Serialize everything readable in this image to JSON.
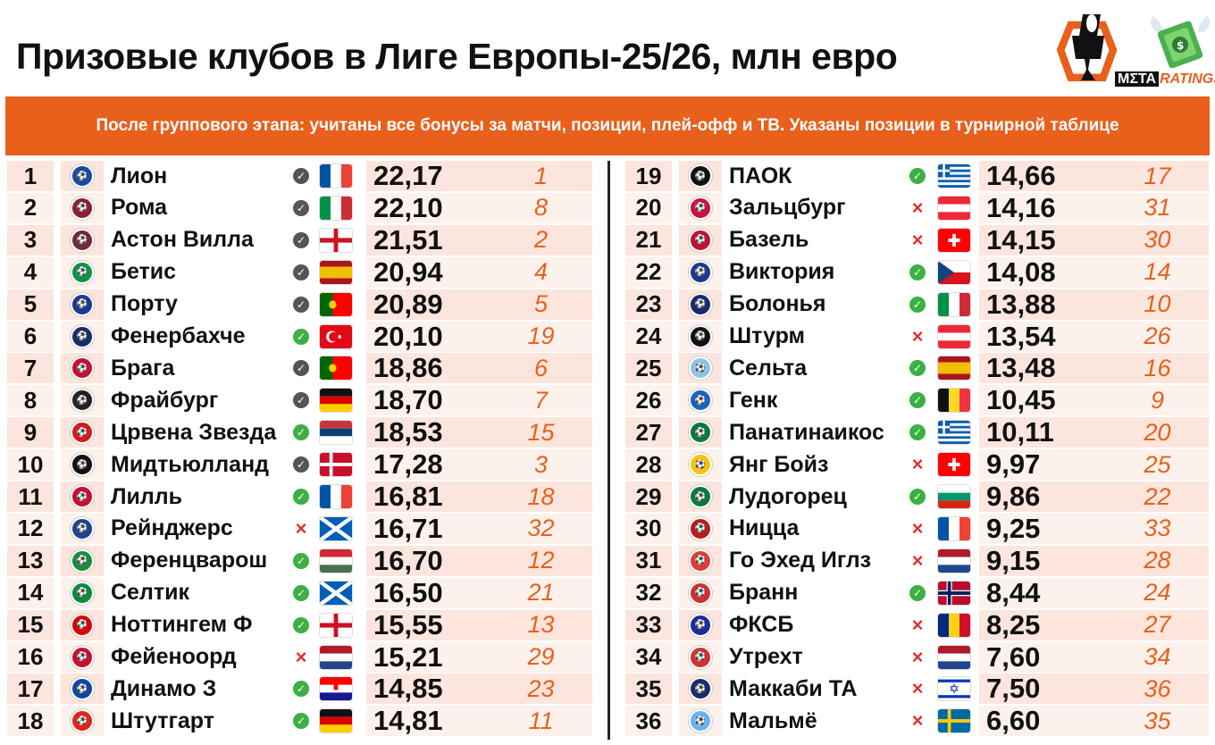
{
  "title": "Призовые клубов в Лиге Европы-25/26, млн евро",
  "subtitle": "После группового этапа: учитаны все бонусы за матчи, позиции, плей-офф и ТВ. Указаны позиции в турнирной таблице",
  "logo": {
    "part1": "MΣTA",
    "part2": "RATINGS"
  },
  "colors": {
    "accent": "#e8601c",
    "check_dark": "#555555",
    "check_green": "#3cb043",
    "cross": "#e03030",
    "row_shade": "#fbe5dc"
  },
  "clubs": [
    {
      "rank": "1",
      "name": "Лион",
      "status": "check-dark",
      "flag": "fr",
      "prize": "22,17",
      "pos": "1",
      "badge": "#1a4ba1"
    },
    {
      "rank": "2",
      "name": "Рома",
      "status": "check-dark",
      "flag": "it",
      "prize": "22,10",
      "pos": "8",
      "badge": "#8e1f2f"
    },
    {
      "rank": "3",
      "name": "Астон Вилла",
      "status": "check-dark",
      "flag": "en",
      "prize": "21,51",
      "pos": "2",
      "badge": "#7a263a"
    },
    {
      "rank": "4",
      "name": "Бетис",
      "status": "check-dark",
      "flag": "es",
      "prize": "20,94",
      "pos": "4",
      "badge": "#0b9443"
    },
    {
      "rank": "5",
      "name": "Порту",
      "status": "check-dark",
      "flag": "pt",
      "prize": "20,89",
      "pos": "5",
      "badge": "#1b3a8f"
    },
    {
      "rank": "6",
      "name": "Фенербахче",
      "status": "check-green",
      "flag": "tr",
      "prize": "20,10",
      "pos": "19",
      "badge": "#1a2b6b"
    },
    {
      "rank": "7",
      "name": "Брага",
      "status": "check-dark",
      "flag": "pt",
      "prize": "18,86",
      "pos": "6",
      "badge": "#c8102e"
    },
    {
      "rank": "8",
      "name": "Фрайбург",
      "status": "check-dark",
      "flag": "de",
      "prize": "18,70",
      "pos": "7",
      "badge": "#222222"
    },
    {
      "rank": "9",
      "name": "Црвена Звезда",
      "status": "check-green",
      "flag": "rs",
      "prize": "18,53",
      "pos": "15",
      "badge": "#d71920"
    },
    {
      "rank": "10",
      "name": "Мидтьюлланд",
      "status": "check-dark",
      "flag": "dk",
      "prize": "17,28",
      "pos": "3",
      "badge": "#111111"
    },
    {
      "rank": "11",
      "name": "Лилль",
      "status": "check-green",
      "flag": "fr",
      "prize": "16,81",
      "pos": "18",
      "badge": "#c8102e"
    },
    {
      "rank": "12",
      "name": "Рейнджерс",
      "status": "cross",
      "flag": "sc",
      "prize": "16,71",
      "pos": "32",
      "badge": "#1b458f"
    },
    {
      "rank": "13",
      "name": "Ференцварош",
      "status": "check-green",
      "flag": "hu",
      "prize": "16,70",
      "pos": "12",
      "badge": "#1a8d3b"
    },
    {
      "rank": "14",
      "name": "Селтик",
      "status": "check-green",
      "flag": "sc",
      "prize": "16,50",
      "pos": "21",
      "badge": "#0a8a3a"
    },
    {
      "rank": "15",
      "name": "Ноттингем Ф",
      "status": "check-green",
      "flag": "en",
      "prize": "15,55",
      "pos": "13",
      "badge": "#dd0000"
    },
    {
      "rank": "16",
      "name": "Фейеноорд",
      "status": "cross",
      "flag": "nl",
      "prize": "15,21",
      "pos": "29",
      "badge": "#c8102e"
    },
    {
      "rank": "17",
      "name": "Динамо З",
      "status": "check-green",
      "flag": "hr",
      "prize": "14,85",
      "pos": "23",
      "badge": "#0d47a1"
    },
    {
      "rank": "18",
      "name": "Штутгарт",
      "status": "check-green",
      "flag": "de",
      "prize": "14,81",
      "pos": "11",
      "badge": "#e32219"
    },
    {
      "rank": "19",
      "name": "ПАОК",
      "status": "check-green",
      "flag": "gr",
      "prize": "14,66",
      "pos": "17",
      "badge": "#111111"
    },
    {
      "rank": "20",
      "name": "Зальцбург",
      "status": "cross",
      "flag": "at",
      "prize": "14,16",
      "pos": "31",
      "badge": "#d0103a"
    },
    {
      "rank": "21",
      "name": "Базель",
      "status": "cross",
      "flag": "ch",
      "prize": "14,15",
      "pos": "30",
      "badge": "#c8102e"
    },
    {
      "rank": "22",
      "name": "Виктория",
      "status": "check-green",
      "flag": "cz",
      "prize": "14,08",
      "pos": "14",
      "badge": "#1b3a8f"
    },
    {
      "rank": "23",
      "name": "Болонья",
      "status": "check-green",
      "flag": "it",
      "prize": "13,88",
      "pos": "10",
      "badge": "#1a2b6b"
    },
    {
      "rank": "24",
      "name": "Штурм",
      "status": "cross",
      "flag": "at",
      "prize": "13,54",
      "pos": "26",
      "badge": "#111111"
    },
    {
      "rank": "25",
      "name": "Сельта",
      "status": "check-green",
      "flag": "es",
      "prize": "13,48",
      "pos": "16",
      "badge": "#8cc4e8"
    },
    {
      "rank": "26",
      "name": "Генк",
      "status": "check-green",
      "flag": "be",
      "prize": "10,45",
      "pos": "9",
      "badge": "#1565c0"
    },
    {
      "rank": "27",
      "name": "Панатинаикос",
      "status": "check-green",
      "flag": "gr",
      "prize": "10,11",
      "pos": "20",
      "badge": "#0a7a3a"
    },
    {
      "rank": "28",
      "name": "Янг Бойз",
      "status": "cross",
      "flag": "ch",
      "prize": "9,97",
      "pos": "25",
      "badge": "#f5c400"
    },
    {
      "rank": "29",
      "name": "Лудогорец",
      "status": "check-green",
      "flag": "bg",
      "prize": "9,86",
      "pos": "22",
      "badge": "#0b7a3a"
    },
    {
      "rank": "30",
      "name": "Ницца",
      "status": "cross",
      "flag": "fr",
      "prize": "9,25",
      "pos": "33",
      "badge": "#b71c1c"
    },
    {
      "rank": "31",
      "name": "Го Эхед Иглз",
      "status": "cross",
      "flag": "nl",
      "prize": "9,15",
      "pos": "28",
      "badge": "#e53935"
    },
    {
      "rank": "32",
      "name": "Бранн",
      "status": "check-green",
      "flag": "no",
      "prize": "8,44",
      "pos": "24",
      "badge": "#d32f2f"
    },
    {
      "rank": "33",
      "name": "ФКСБ",
      "status": "cross",
      "flag": "ro",
      "prize": "8,25",
      "pos": "27",
      "badge": "#1a2b9b"
    },
    {
      "rank": "34",
      "name": "Утрехт",
      "status": "cross",
      "flag": "nl",
      "prize": "7,60",
      "pos": "34",
      "badge": "#d32f2f"
    },
    {
      "rank": "35",
      "name": "Маккаби ТА",
      "status": "cross",
      "flag": "il",
      "prize": "7,50",
      "pos": "36",
      "badge": "#1a2b6b"
    },
    {
      "rank": "36",
      "name": "Мальмё",
      "status": "cross",
      "flag": "se",
      "prize": "6,60",
      "pos": "35",
      "badge": "#64b5f6"
    }
  ]
}
